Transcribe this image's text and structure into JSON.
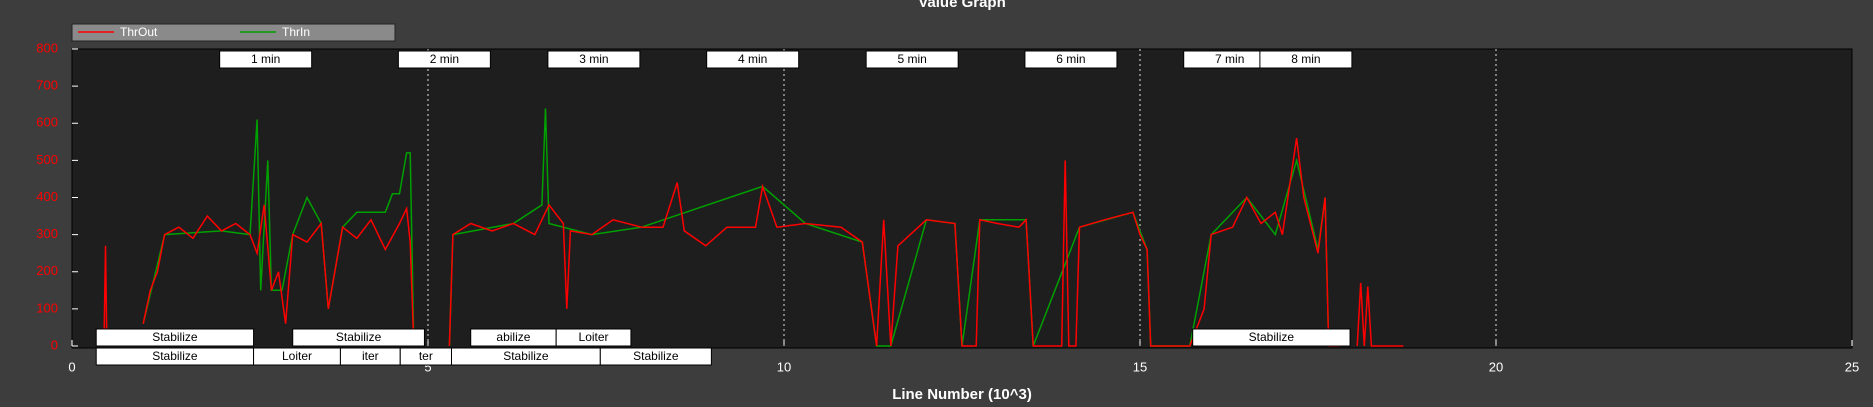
{
  "chart_data": {
    "type": "line",
    "title": "Value Graph",
    "x_label": "Line Number (10^3)",
    "xlim": [
      0,
      25
    ],
    "xticks": [
      0,
      5,
      10,
      15,
      20,
      25
    ],
    "ylim": [
      0,
      800
    ],
    "yticks": [
      0,
      100,
      200,
      300,
      400,
      500,
      600,
      700,
      800
    ],
    "grid": true,
    "legend": "top-left",
    "series": [
      {
        "name": "ThrIn",
        "color": "#00a000",
        "x": [
          1.0,
          1.3,
          2.1,
          2.5,
          2.6,
          2.65,
          2.75,
          2.8,
          2.95,
          3.1,
          3.3,
          3.5,
          3.6,
          3.8,
          4.0,
          4.4,
          4.5,
          4.6,
          4.7,
          4.75,
          4.8,
          5.0,
          5.3,
          5.35,
          6.2,
          6.6,
          6.65,
          6.7,
          7.3,
          8.0,
          9.7,
          10.3,
          11.1,
          11.3,
          11.5,
          12.0,
          12.4,
          12.5,
          12.75,
          13.4,
          13.5,
          14.15,
          14.9,
          15.1,
          15.15,
          15.7,
          16.0,
          16.5,
          16.9,
          17.2,
          17.5,
          17.6,
          17.65
        ],
        "values": [
          60,
          300,
          310,
          300,
          610,
          150,
          500,
          150,
          150,
          300,
          400,
          330,
          100,
          320,
          360,
          360,
          410,
          410,
          520,
          520,
          0,
          null,
          0,
          300,
          330,
          380,
          640,
          330,
          300,
          320,
          430,
          330,
          280,
          0,
          0,
          340,
          330,
          0,
          340,
          340,
          0,
          320,
          360,
          260,
          0,
          0,
          300,
          400,
          300,
          500,
          260,
          400,
          0
        ]
      },
      {
        "name": "ThrOut",
        "color": "#ff0000",
        "x": [
          0.45,
          0.47,
          0.49,
          0.6,
          1.0,
          1.1,
          1.2,
          1.3,
          1.5,
          1.7,
          1.9,
          2.1,
          2.3,
          2.5,
          2.6,
          2.7,
          2.8,
          2.9,
          3.0,
          3.1,
          3.3,
          3.5,
          3.6,
          3.8,
          4.0,
          4.2,
          4.4,
          4.6,
          4.7,
          4.75,
          4.8,
          5.0,
          5.3,
          5.35,
          5.6,
          5.9,
          6.2,
          6.5,
          6.7,
          6.9,
          6.95,
          7.0,
          7.3,
          7.6,
          8.0,
          8.3,
          8.5,
          8.6,
          8.9,
          9.2,
          9.6,
          9.7,
          9.9,
          10.3,
          10.8,
          11.1,
          11.3,
          11.4,
          11.5,
          11.6,
          12.0,
          12.4,
          12.5,
          12.7,
          12.75,
          13.0,
          13.3,
          13.4,
          13.5,
          13.9,
          13.95,
          14.0,
          14.1,
          14.15,
          14.5,
          14.9,
          15.0,
          15.1,
          15.15,
          15.7,
          15.9,
          16.0,
          16.3,
          16.5,
          16.7,
          16.9,
          17.0,
          17.2,
          17.3,
          17.5,
          17.6,
          17.65,
          17.8,
          17.9,
          18.05,
          18.1,
          18.15,
          18.2,
          18.25,
          18.7
        ],
        "values": [
          0,
          270,
          0,
          null,
          60,
          150,
          200,
          300,
          320,
          290,
          350,
          310,
          330,
          300,
          250,
          380,
          150,
          200,
          60,
          300,
          280,
          330,
          100,
          320,
          290,
          340,
          260,
          330,
          370,
          280,
          0,
          null,
          0,
          300,
          330,
          310,
          330,
          300,
          380,
          330,
          100,
          310,
          300,
          340,
          320,
          320,
          440,
          310,
          270,
          320,
          320,
          430,
          320,
          330,
          320,
          280,
          0,
          340,
          0,
          270,
          340,
          330,
          0,
          0,
          340,
          330,
          320,
          340,
          0,
          0,
          500,
          0,
          0,
          320,
          340,
          360,
          300,
          260,
          0,
          0,
          100,
          300,
          320,
          400,
          330,
          360,
          300,
          560,
          400,
          250,
          400,
          0,
          0,
          null,
          0,
          170,
          0,
          160,
          0,
          0
        ]
      }
    ],
    "time_markers": [
      {
        "label": "1 min",
        "x": 2.72
      },
      {
        "label": "2 min",
        "x": 5.23
      },
      {
        "label": "3 min",
        "x": 7.33
      },
      {
        "label": "4 min",
        "x": 9.56
      },
      {
        "label": "5 min",
        "x": 11.8
      },
      {
        "label": "6 min",
        "x": 14.03
      },
      {
        "label": "7 min",
        "x": 16.26
      },
      {
        "label": "8 min",
        "x": 17.33
      }
    ],
    "mode_rows": [
      [
        {
          "label": "Stabilize",
          "start": 0.34,
          "end": 2.55
        },
        {
          "label": "Stabilize",
          "start": 3.1,
          "end": 4.95
        },
        {
          "label": "abilize",
          "start": 5.6,
          "end": 6.8
        },
        {
          "label": "Loiter",
          "start": 6.8,
          "end": 7.85
        },
        {
          "label": "Stabilize",
          "start": 15.74,
          "end": 17.95
        }
      ],
      [
        {
          "label": "Stabilize",
          "start": 0.34,
          "end": 2.55
        },
        {
          "label": "Loiter",
          "start": 2.55,
          "end": 3.77
        },
        {
          "label": "iter",
          "start": 3.77,
          "end": 4.61
        },
        {
          "label": "ter",
          "start": 4.61,
          "end": 5.33
        },
        {
          "label": "Stabilize",
          "start": 5.33,
          "end": 7.42
        },
        {
          "label": "Stabilize",
          "start": 7.42,
          "end": 8.98
        }
      ]
    ]
  }
}
